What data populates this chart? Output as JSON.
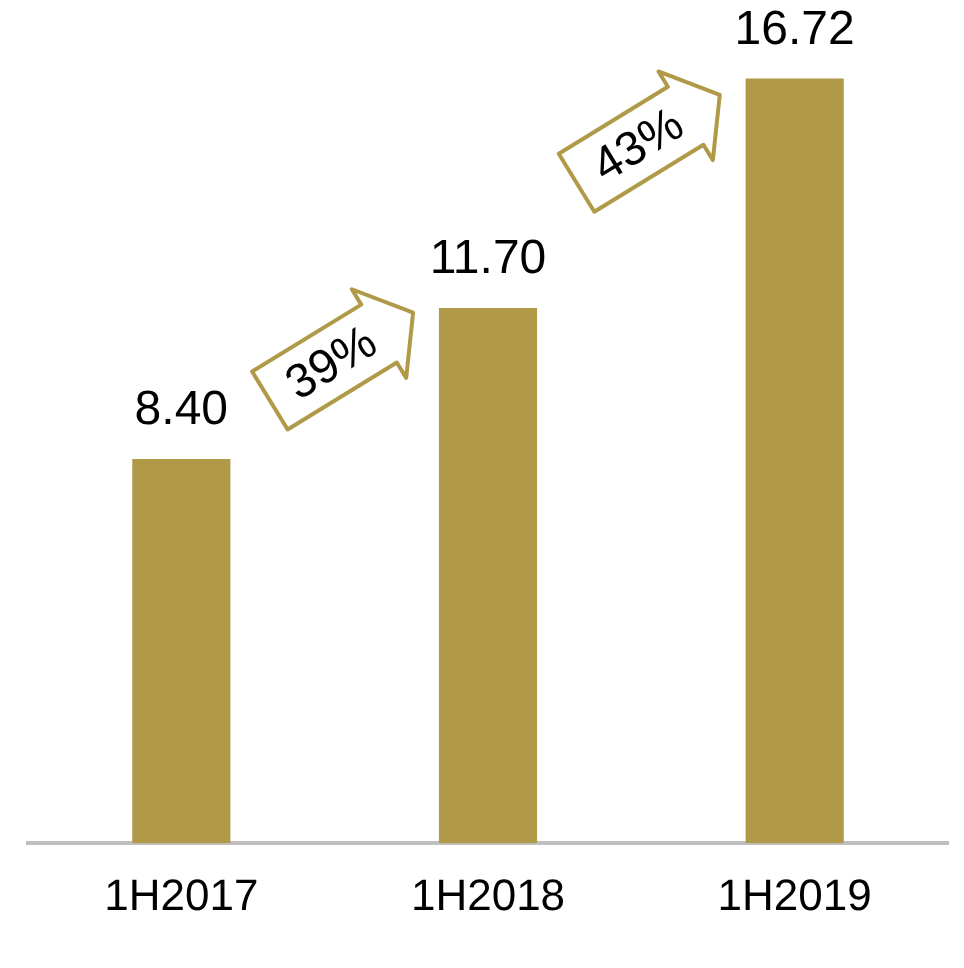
{
  "chart_data": {
    "type": "bar",
    "categories": [
      "1H2017",
      "1H2018",
      "1H2019"
    ],
    "values": [
      8.4,
      11.7,
      16.72
    ],
    "color": "#b09a48",
    "value_labels": [
      "8.40",
      "11.70",
      "16.72"
    ],
    "annotations": [
      "39%",
      "43%"
    ],
    "grid": false,
    "legend": false
  }
}
